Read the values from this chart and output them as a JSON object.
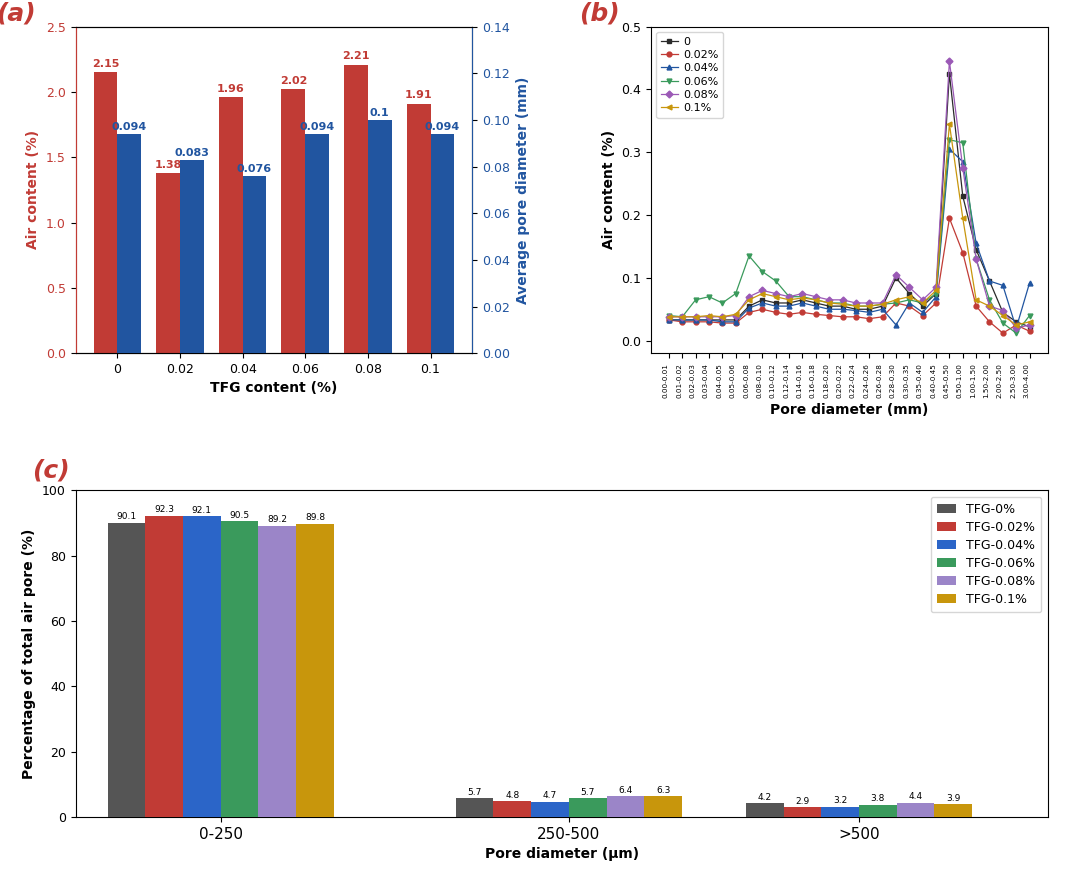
{
  "panel_a": {
    "categories": [
      "0",
      "0.02",
      "0.04",
      "0.06",
      "0.08",
      "0.1"
    ],
    "air_content": [
      2.15,
      1.38,
      1.96,
      2.02,
      2.21,
      1.91
    ],
    "avg_pore_diameter": [
      0.094,
      0.083,
      0.076,
      0.094,
      0.1,
      0.094
    ],
    "bar_color_red": "#C13B35",
    "bar_color_blue": "#2155A0",
    "ylabel_left": "Air content (%)",
    "ylabel_right": "Average pore diameter (mm)",
    "xlabel": "TFG content (%)",
    "ylim_left": [
      0.0,
      2.5
    ],
    "ylim_right": [
      0.0,
      0.14
    ],
    "yticks_left": [
      0.0,
      0.5,
      1.0,
      1.5,
      2.0,
      2.5
    ],
    "yticks_right": [
      0.0,
      0.02,
      0.04,
      0.06,
      0.08,
      0.1,
      0.12,
      0.14
    ]
  },
  "panel_b": {
    "pore_diameters": [
      "0.00-0.01",
      "0.01-0.02",
      "0.02-0.03",
      "0.03-0.04",
      "0.04-0.05",
      "0.05-0.06",
      "0.06-0.08",
      "0.08-0.10",
      "0.10-0.12",
      "0.12-0.14",
      "0.14-0.16",
      "0.16-0.18",
      "0.18-0.20",
      "0.20-0.22",
      "0.22-0.24",
      "0.24-0.26",
      "0.26-0.28",
      "0.28-0.30",
      "0.30-0.35",
      "0.35-0.40",
      "0.40-0.45",
      "0.45-0.50",
      "0.50-1.00",
      "1.00-1.50",
      "1.50-2.00",
      "2.00-2.50",
      "2.50-3.00",
      "3.00-4.00"
    ],
    "series": {
      "0": [
        0.033,
        0.033,
        0.033,
        0.033,
        0.033,
        0.033,
        0.055,
        0.065,
        0.06,
        0.06,
        0.065,
        0.06,
        0.055,
        0.055,
        0.05,
        0.05,
        0.055,
        0.1,
        0.075,
        0.055,
        0.075,
        0.425,
        0.23,
        0.145,
        0.095,
        0.045,
        0.03,
        0.022
      ],
      "0.02%": [
        0.033,
        0.03,
        0.03,
        0.03,
        0.028,
        0.028,
        0.045,
        0.05,
        0.045,
        0.042,
        0.045,
        0.042,
        0.04,
        0.038,
        0.038,
        0.035,
        0.038,
        0.06,
        0.055,
        0.04,
        0.06,
        0.195,
        0.14,
        0.055,
        0.03,
        0.012,
        0.025,
        0.015
      ],
      "0.04%": [
        0.033,
        0.033,
        0.033,
        0.033,
        0.03,
        0.03,
        0.052,
        0.06,
        0.055,
        0.055,
        0.06,
        0.055,
        0.05,
        0.05,
        0.048,
        0.045,
        0.05,
        0.025,
        0.06,
        0.045,
        0.07,
        0.305,
        0.285,
        0.155,
        0.095,
        0.088,
        0.02,
        0.092
      ],
      "0.06%": [
        0.04,
        0.038,
        0.065,
        0.07,
        0.06,
        0.075,
        0.135,
        0.11,
        0.095,
        0.07,
        0.07,
        0.065,
        0.06,
        0.06,
        0.055,
        0.055,
        0.058,
        0.06,
        0.065,
        0.06,
        0.075,
        0.32,
        0.315,
        0.13,
        0.065,
        0.028,
        0.012,
        0.04
      ],
      "0.08%": [
        0.038,
        0.038,
        0.038,
        0.038,
        0.038,
        0.04,
        0.07,
        0.08,
        0.075,
        0.07,
        0.075,
        0.07,
        0.065,
        0.065,
        0.06,
        0.06,
        0.06,
        0.105,
        0.085,
        0.065,
        0.085,
        0.445,
        0.275,
        0.13,
        0.055,
        0.048,
        0.02,
        0.025
      ],
      "0.1%": [
        0.038,
        0.038,
        0.038,
        0.04,
        0.038,
        0.042,
        0.065,
        0.075,
        0.07,
        0.065,
        0.068,
        0.065,
        0.06,
        0.058,
        0.055,
        0.055,
        0.058,
        0.065,
        0.07,
        0.06,
        0.08,
        0.345,
        0.195,
        0.065,
        0.055,
        0.04,
        0.025,
        0.03
      ]
    },
    "colors": {
      "0": "#2B2B2B",
      "0.02%": "#C13B35",
      "0.04%": "#2155A0",
      "0.06%": "#3A9A5C",
      "0.08%": "#9B59B6",
      "0.1%": "#C8960C"
    },
    "markers": {
      "0": "s",
      "0.02%": "o",
      "0.04%": "^",
      "0.06%": "v",
      "0.08%": "D",
      "0.1%": "<"
    },
    "ylabel": "Air content (%)",
    "xlabel": "Pore diameter (mm)",
    "ylim": [
      -0.02,
      0.5
    ],
    "yticks": [
      0.0,
      0.1,
      0.2,
      0.3,
      0.4,
      0.5
    ]
  },
  "panel_c": {
    "categories": [
      "0-250",
      "250-500",
      ">500"
    ],
    "series_labels": [
      "TFG-0%",
      "TFG-0.02%",
      "TFG-0.04%",
      "TFG-0.06%",
      "TFG-0.08%",
      "TFG-0.1%"
    ],
    "colors": [
      "#555555",
      "#C13B35",
      "#2B65C8",
      "#3A9A5C",
      "#9B85C8",
      "#C8960C"
    ],
    "data": {
      "0-250": [
        90.1,
        92.3,
        92.1,
        90.5,
        89.2,
        89.8
      ],
      "250-500": [
        5.7,
        4.8,
        4.7,
        5.7,
        6.4,
        6.3
      ],
      ">500": [
        4.2,
        2.9,
        3.2,
        3.8,
        4.4,
        3.9
      ]
    },
    "ylabel": "Percentage of total air pore (%)",
    "xlabel": "Pore diameter (μm)",
    "ylim": [
      0,
      100
    ],
    "yticks": [
      0,
      20,
      40,
      60,
      80,
      100
    ]
  }
}
